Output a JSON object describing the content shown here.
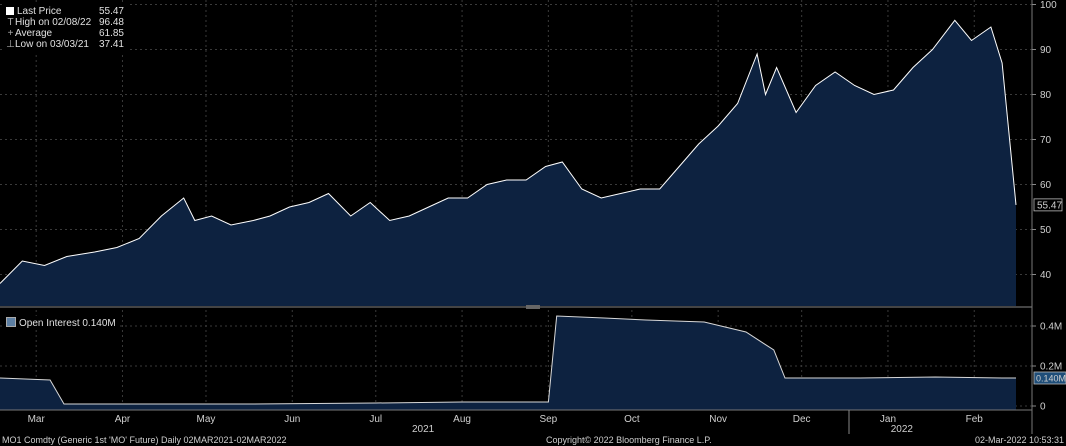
{
  "legend": {
    "last_price": {
      "label": "Last Price",
      "value": "55.47"
    },
    "high": {
      "label": "High on 02/08/22",
      "value": "96.48"
    },
    "average": {
      "label": "Average",
      "value": "61.85"
    },
    "low": {
      "label": "Low on 03/03/21",
      "value": "37.41"
    }
  },
  "oi_legend": {
    "label": "Open Interest 0.140M"
  },
  "footer": {
    "left": "MO1 Comdty (Generic 1st 'MO' Future)  Daily 02MAR2021-02MAR2022",
    "center": "Copyright© 2022 Bloomberg Finance L.P.",
    "right": "02-Mar-2022 10:53:31"
  },
  "colors": {
    "background": "#000000",
    "area": "#0d2240",
    "line": "#ffffff",
    "grid": "#3a3a3a"
  },
  "chart_data": [
    {
      "type": "area",
      "series": [
        {
          "name": "Last Price"
        }
      ],
      "y_ticks": [
        "40",
        "50",
        "60",
        "70",
        "80",
        "90",
        "100"
      ],
      "ylim": [
        33,
        101
      ],
      "last_value_label": "55.47",
      "x_months": [
        "Mar",
        "Apr",
        "May",
        "Jun",
        "Jul",
        "Aug",
        "Sep",
        "Oct",
        "Nov",
        "Dec",
        "Jan",
        "Feb"
      ],
      "x_years": [
        "2021",
        "2022"
      ],
      "x": [
        "2021-03-02",
        "2021-03-10",
        "2021-03-18",
        "2021-03-26",
        "2021-04-05",
        "2021-04-13",
        "2021-04-21",
        "2021-04-29",
        "2021-05-07",
        "2021-05-11",
        "2021-05-17",
        "2021-05-24",
        "2021-06-01",
        "2021-06-07",
        "2021-06-14",
        "2021-06-21",
        "2021-06-28",
        "2021-07-06",
        "2021-07-13",
        "2021-07-20",
        "2021-07-27",
        "2021-08-03",
        "2021-08-10",
        "2021-08-17",
        "2021-08-24",
        "2021-08-31",
        "2021-09-07",
        "2021-09-14",
        "2021-09-20",
        "2021-09-27",
        "2021-10-04",
        "2021-10-11",
        "2021-10-18",
        "2021-10-25",
        "2021-11-01",
        "2021-11-08",
        "2021-11-15",
        "2021-11-22",
        "2021-11-29",
        "2021-12-02",
        "2021-12-06",
        "2021-12-13",
        "2021-12-20",
        "2021-12-27",
        "2022-01-03",
        "2022-01-10",
        "2022-01-17",
        "2022-01-24",
        "2022-01-31",
        "2022-02-08",
        "2022-02-14",
        "2022-02-21",
        "2022-02-25",
        "2022-03-02"
      ],
      "values": [
        38,
        43,
        42,
        44,
        45,
        46,
        48,
        53,
        57,
        52,
        53,
        51,
        52,
        53,
        55,
        56,
        58,
        53,
        56,
        52,
        53,
        55,
        57,
        57,
        60,
        61,
        61,
        64,
        65,
        59,
        57,
        58,
        59,
        59,
        64,
        69,
        73,
        78,
        89,
        80,
        86,
        76,
        82,
        85,
        82,
        80,
        81,
        86,
        90,
        96.48,
        92,
        95,
        87,
        55.47
      ]
    },
    {
      "type": "area",
      "series": [
        {
          "name": "Open Interest"
        }
      ],
      "y_ticks": [
        "0",
        "0.2M",
        "0.4M"
      ],
      "ylim": [
        -0.02,
        0.48
      ],
      "last_value_label": "0.140M",
      "x": [
        "2021-03-02",
        "2021-03-20",
        "2021-03-25",
        "2021-04-15",
        "2021-06-01",
        "2021-07-15",
        "2021-08-15",
        "2021-09-15",
        "2021-09-18",
        "2021-10-05",
        "2021-10-20",
        "2021-11-10",
        "2021-11-25",
        "2021-12-05",
        "2021-12-09",
        "2021-12-20",
        "2022-01-05",
        "2022-02-01",
        "2022-02-25",
        "2022-03-02"
      ],
      "values": [
        0.14,
        0.13,
        0.01,
        0.01,
        0.01,
        0.015,
        0.02,
        0.02,
        0.45,
        0.44,
        0.43,
        0.42,
        0.37,
        0.28,
        0.14,
        0.14,
        0.14,
        0.145,
        0.14,
        0.14
      ]
    }
  ]
}
